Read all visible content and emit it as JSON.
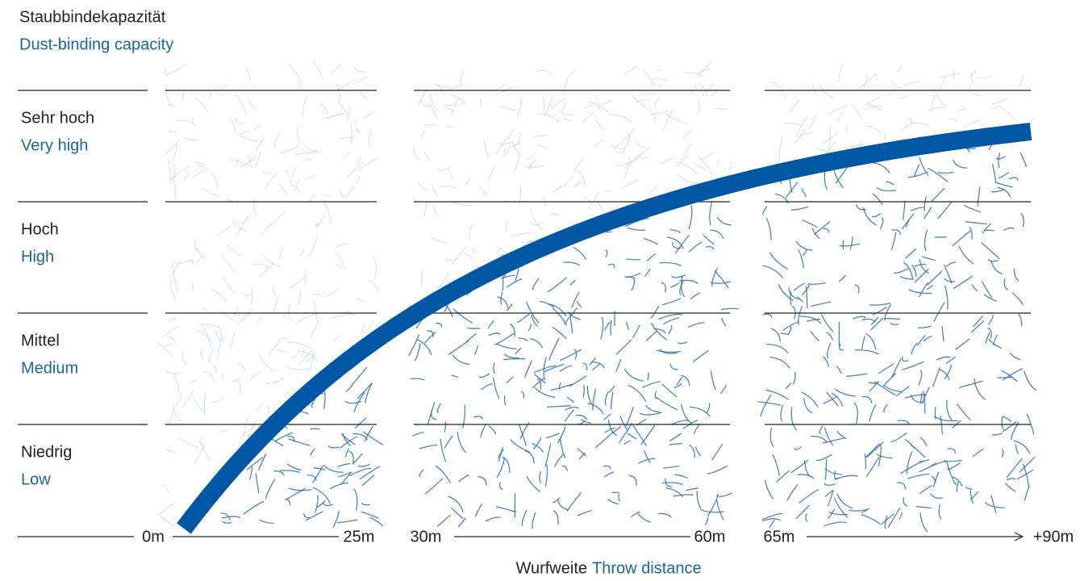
{
  "title": {
    "de": "Staubbindekapazität",
    "en": "Dust-binding capacity"
  },
  "levels": [
    {
      "de": "Sehr hoch",
      "en": "Very high"
    },
    {
      "de": "Hoch",
      "en": "High"
    },
    {
      "de": "Mittel",
      "en": "Medium"
    },
    {
      "de": "Niedrig",
      "en": "Low"
    }
  ],
  "x_axis": {
    "title_de": "Wurfweite",
    "title_en": "Throw distance",
    "labels": [
      "0m",
      "25m",
      "30m",
      "60m",
      "65m",
      "+90m"
    ]
  }
}
